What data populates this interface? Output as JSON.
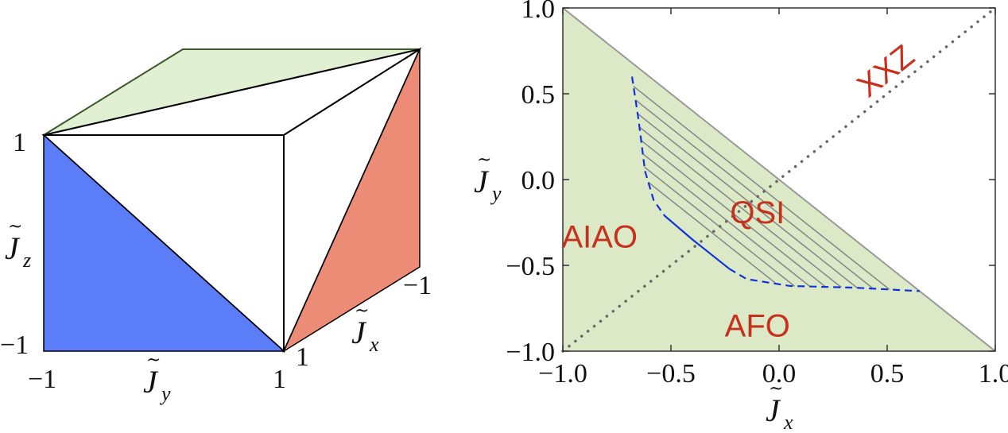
{
  "colors": {
    "blue_face": "#5b7ef8",
    "red_face": "#ec8b76",
    "green_face": "#e1efd2",
    "phase_fill": "#dbe9c6",
    "region_text": "#c8301e",
    "boundary_line": "#1133dd",
    "hatch": "#8a8a8a",
    "diag_dotted": "#666666"
  },
  "cube_panel": {
    "axis_labels": {
      "jy": {
        "base": "J",
        "sub": "y"
      },
      "jz": {
        "base": "J",
        "sub": "z"
      },
      "jx": {
        "base": "J",
        "sub": "x"
      }
    },
    "tick_labels": {
      "z_top": "1",
      "z_bottom": "−1",
      "y_left": "−1",
      "y_right": "1",
      "x_front": "1",
      "x_back": "−1"
    }
  },
  "chart_data": {
    "type": "area",
    "xlim": [
      -1.0,
      1.0
    ],
    "ylim": [
      -1.0,
      1.0
    ],
    "x_ticks": [
      "−1.0",
      "−0.5",
      "0.0",
      "0.5",
      "1.0"
    ],
    "y_ticks": [
      "−1.0",
      "−0.5",
      "0.0",
      "0.5",
      "1.0"
    ],
    "x_tick_values": [
      -1.0,
      -0.5,
      0.0,
      0.5,
      1.0
    ],
    "y_tick_values": [
      -1.0,
      -0.5,
      0.0,
      0.5,
      1.0
    ],
    "xlabel": {
      "base": "J",
      "sub": "x"
    },
    "ylabel": {
      "base": "J",
      "sub": "y"
    },
    "allowed_region": [
      [
        -1.0,
        1.0
      ],
      [
        1.0,
        -1.0
      ],
      [
        -1.0,
        -1.0
      ]
    ],
    "diagonal_line": {
      "label": "XXZ",
      "points": [
        [
          -1.0,
          -1.0
        ],
        [
          1.0,
          1.0
        ]
      ]
    },
    "regions": [
      {
        "label": "AIAO",
        "x": -0.83,
        "y": -0.33
      },
      {
        "label": "QSI",
        "x": -0.1,
        "y": -0.19
      },
      {
        "label": "AFO",
        "x": -0.1,
        "y": -0.85
      }
    ],
    "qsi_boundary_dashed_upper": [
      [
        -0.68,
        0.6
      ],
      [
        -0.65,
        0.35
      ],
      [
        -0.62,
        0.05
      ],
      [
        -0.58,
        -0.12
      ],
      [
        -0.53,
        -0.21
      ]
    ],
    "qsi_boundary_solid": [
      [
        -0.53,
        -0.21
      ],
      [
        -0.4,
        -0.35
      ],
      [
        -0.23,
        -0.52
      ]
    ],
    "qsi_boundary_dashed_lower": [
      [
        -0.23,
        -0.52
      ],
      [
        -0.15,
        -0.58
      ],
      [
        0.05,
        -0.62
      ],
      [
        0.35,
        -0.63
      ],
      [
        0.65,
        -0.65
      ]
    ],
    "hatch_offsets": [
      -0.62,
      -0.55,
      -0.48,
      -0.41,
      -0.34,
      -0.27,
      -0.2,
      -0.13,
      -0.06,
      0.01,
      0.08,
      0.15,
      0.22
    ]
  }
}
